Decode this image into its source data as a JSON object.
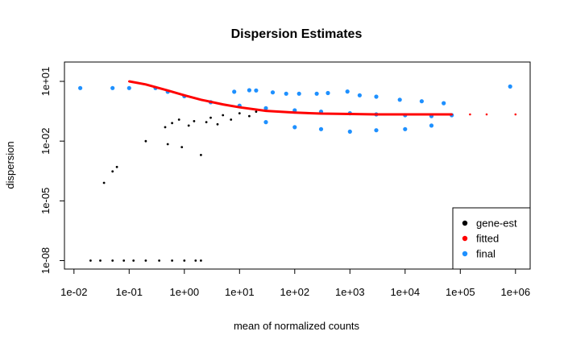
{
  "chart_data": {
    "type": "scatter",
    "title": "Dispersion Estimates",
    "xlabel": "mean of normalized counts",
    "ylabel": "dispersion",
    "x_scale": "log10",
    "y_scale": "log10",
    "xlim": [
      0.01,
      1000000
    ],
    "ylim": [
      1e-08,
      10
    ],
    "x_ticks": [
      {
        "value": 0.01,
        "label": "1e-02"
      },
      {
        "value": 0.1,
        "label": "1e-01"
      },
      {
        "value": 1,
        "label": "1e+00"
      },
      {
        "value": 10,
        "label": "1e+01"
      },
      {
        "value": 100,
        "label": "1e+02"
      },
      {
        "value": 1000,
        "label": "1e+03"
      },
      {
        "value": 10000,
        "label": "1e+04"
      },
      {
        "value": 100000,
        "label": "1e+05"
      },
      {
        "value": 1000000,
        "label": "1e+06"
      }
    ],
    "y_ticks": [
      {
        "value": 10,
        "label": "1e+01"
      },
      {
        "value": 0.01,
        "label": "1e-02"
      },
      {
        "value": 1e-05,
        "label": "1e-05"
      },
      {
        "value": 1e-08,
        "label": "1e-08"
      }
    ],
    "legend": {
      "position": "bottom-right",
      "entries": [
        {
          "label": "gene-est",
          "color": "#000000"
        },
        {
          "label": "fitted",
          "color": "#ff0000"
        },
        {
          "label": "final",
          "color": "#1e90ff"
        }
      ]
    },
    "series": [
      {
        "name": "gene-est",
        "color": "#000000",
        "points": [
          [
            0.02,
            1e-08
          ],
          [
            0.03,
            1e-08
          ],
          [
            0.05,
            1e-08
          ],
          [
            0.08,
            1e-08
          ],
          [
            0.12,
            1e-08
          ],
          [
            0.2,
            1e-08
          ],
          [
            0.35,
            1e-08
          ],
          [
            0.6,
            1e-08
          ],
          [
            1.0,
            1e-08
          ],
          [
            1.6,
            1e-08
          ],
          [
            2.0,
            1e-08
          ],
          [
            0.035,
            8e-05
          ],
          [
            0.05,
            0.0003
          ],
          [
            0.06,
            0.0005
          ],
          [
            0.2,
            0.01
          ],
          [
            0.5,
            0.007
          ],
          [
            0.9,
            0.005
          ],
          [
            2.0,
            0.002
          ],
          [
            0.45,
            0.05
          ],
          [
            0.6,
            0.08
          ],
          [
            0.8,
            0.12
          ],
          [
            1.2,
            0.06
          ],
          [
            1.5,
            0.1
          ],
          [
            2.5,
            0.09
          ],
          [
            3.0,
            0.15
          ],
          [
            4.0,
            0.07
          ],
          [
            5.0,
            0.2
          ],
          [
            7.0,
            0.12
          ],
          [
            10.0,
            0.25
          ],
          [
            15.0,
            0.18
          ],
          [
            20.0,
            0.3
          ]
        ]
      },
      {
        "name": "fitted",
        "color": "#ff0000",
        "points": [
          [
            0.1,
            10
          ],
          [
            0.2,
            7
          ],
          [
            0.5,
            3.5
          ],
          [
            1,
            2
          ],
          [
            2,
            1.2
          ],
          [
            5,
            0.7
          ],
          [
            10,
            0.5
          ],
          [
            30,
            0.33
          ],
          [
            100,
            0.27
          ],
          [
            300,
            0.24
          ],
          [
            1000,
            0.23
          ],
          [
            3000,
            0.22
          ],
          [
            10000,
            0.22
          ],
          [
            30000,
            0.22
          ],
          [
            70000,
            0.22
          ],
          [
            150000,
            0.22
          ],
          [
            300000,
            0.22
          ],
          [
            1000000,
            0.22
          ]
        ]
      },
      {
        "name": "final",
        "color": "#1e90ff",
        "points": [
          [
            0.013,
            4.6
          ],
          [
            0.05,
            4.6
          ],
          [
            0.1,
            4.6
          ],
          [
            0.3,
            4.6
          ],
          [
            0.5,
            3.0
          ],
          [
            1,
            1.8
          ],
          [
            3,
            0.9
          ],
          [
            10,
            0.6
          ],
          [
            30,
            0.45
          ],
          [
            100,
            0.35
          ],
          [
            300,
            0.3
          ],
          [
            1000,
            0.25
          ],
          [
            3000,
            0.22
          ],
          [
            10000,
            0.2
          ],
          [
            30000,
            0.18
          ],
          [
            70000,
            0.2
          ],
          [
            8,
            3.0
          ],
          [
            15,
            3.6
          ],
          [
            20,
            3.5
          ],
          [
            40,
            2.8
          ],
          [
            70,
            2.4
          ],
          [
            120,
            2.4
          ],
          [
            250,
            2.4
          ],
          [
            400,
            2.6
          ],
          [
            900,
            3.1
          ],
          [
            1500,
            2.0
          ],
          [
            3000,
            1.7
          ],
          [
            8000,
            1.2
          ],
          [
            20000,
            1.0
          ],
          [
            50000,
            0.8
          ],
          [
            800000,
            5.5
          ],
          [
            30,
            0.09
          ],
          [
            100,
            0.05
          ],
          [
            300,
            0.04
          ],
          [
            1000,
            0.03
          ],
          [
            3000,
            0.035
          ],
          [
            10000,
            0.04
          ],
          [
            30000,
            0.06
          ]
        ]
      }
    ]
  }
}
